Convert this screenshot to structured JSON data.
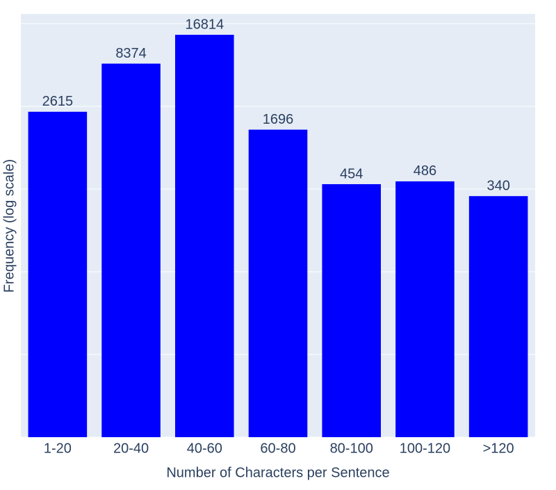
{
  "chart_data": {
    "type": "bar",
    "x_label": "Number of Characters per Sentence",
    "y_label": "Frequency (log scale)",
    "categories": [
      "1-20",
      "20-40",
      "40-60",
      "60-80",
      "80-100",
      "100-120",
      ">120"
    ],
    "values": [
      2615,
      8374,
      16814,
      1696,
      454,
      486,
      340
    ],
    "color": "#0000ff",
    "log_y": true,
    "ylim": [
      1,
      27870
    ],
    "yticks": [
      1,
      7.389,
      54.598,
      403.429,
      2980.958,
      22026.466
    ],
    "ytick_labels": false,
    "grid": true,
    "value_labels_on_bars": true
  }
}
